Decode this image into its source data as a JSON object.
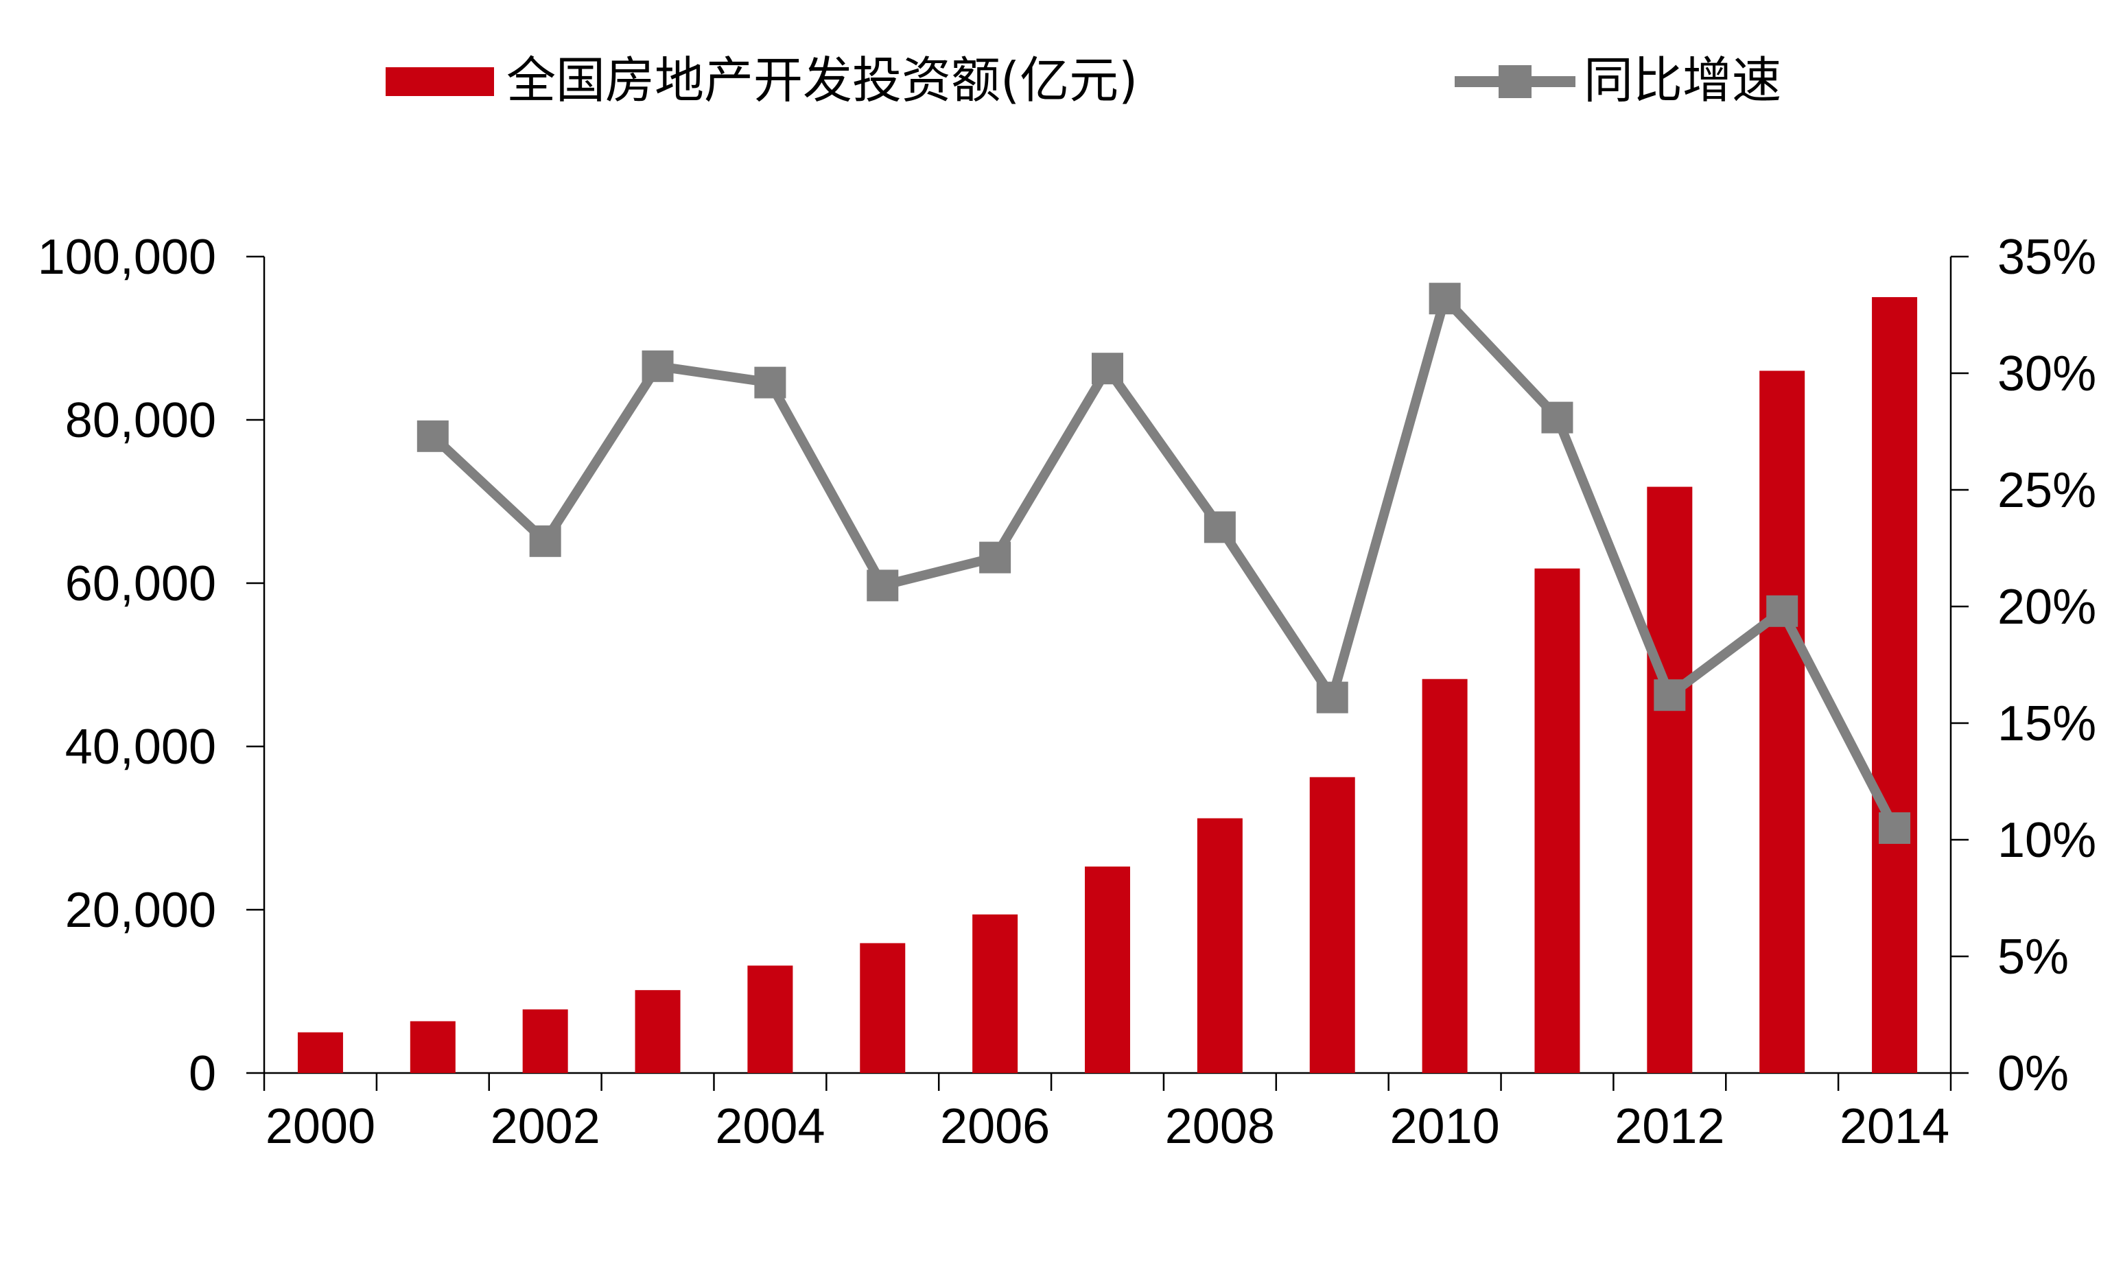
{
  "chart_data": {
    "type": "bar+line",
    "categories": [
      "2000",
      "2001",
      "2002",
      "2003",
      "2004",
      "2005",
      "2006",
      "2007",
      "2008",
      "2009",
      "2010",
      "2011",
      "2012",
      "2013",
      "2014"
    ],
    "x_tick_labels": [
      "2000",
      "2002",
      "2004",
      "2006",
      "2008",
      "2010",
      "2012",
      "2014"
    ],
    "series": [
      {
        "name": "全国房地产开发投资额(亿元)",
        "type": "bar",
        "axis": "left",
        "color": "#C8000F",
        "values": [
          4984,
          6344,
          7791,
          10154,
          13158,
          15909,
          19423,
          25289,
          31203,
          36242,
          48259,
          61797,
          71804,
          86013,
          95036
        ]
      },
      {
        "name": "同比增速",
        "type": "line",
        "axis": "right",
        "color": "#808080",
        "marker": "square",
        "values": [
          null,
          27.3,
          22.8,
          30.3,
          29.6,
          20.9,
          22.1,
          30.2,
          23.4,
          16.1,
          33.2,
          28.1,
          16.2,
          19.8,
          10.5
        ]
      }
    ],
    "left_axis": {
      "ylim": [
        0,
        100000
      ],
      "ticks": [
        0,
        20000,
        40000,
        60000,
        80000,
        100000
      ],
      "tick_labels": [
        "0",
        "20,000",
        "40,000",
        "60,000",
        "80,000",
        "100,000"
      ]
    },
    "right_axis": {
      "ylim": [
        0,
        35
      ],
      "ticks": [
        0,
        5,
        10,
        15,
        20,
        25,
        30,
        35
      ],
      "tick_labels": [
        "0%",
        "5%",
        "10%",
        "15%",
        "20%",
        "25%",
        "30%",
        "35%"
      ]
    },
    "legend_position": "top",
    "grid": false
  }
}
